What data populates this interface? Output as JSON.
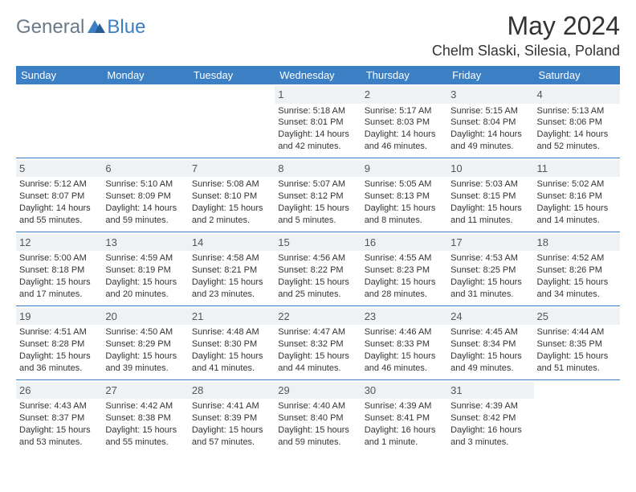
{
  "logo": {
    "general": "General",
    "blue": "Blue"
  },
  "title": "May 2024",
  "location": "Chelm Slaski, Silesia, Poland",
  "header_bg": "#3b7fc4",
  "daynum_bg": "#eef2f5",
  "days": [
    "Sunday",
    "Monday",
    "Tuesday",
    "Wednesday",
    "Thursday",
    "Friday",
    "Saturday"
  ],
  "weeks": [
    [
      null,
      null,
      null,
      {
        "n": "1",
        "sr": "Sunrise: 5:18 AM",
        "ss": "Sunset: 8:01 PM",
        "d1": "Daylight: 14 hours",
        "d2": "and 42 minutes."
      },
      {
        "n": "2",
        "sr": "Sunrise: 5:17 AM",
        "ss": "Sunset: 8:03 PM",
        "d1": "Daylight: 14 hours",
        "d2": "and 46 minutes."
      },
      {
        "n": "3",
        "sr": "Sunrise: 5:15 AM",
        "ss": "Sunset: 8:04 PM",
        "d1": "Daylight: 14 hours",
        "d2": "and 49 minutes."
      },
      {
        "n": "4",
        "sr": "Sunrise: 5:13 AM",
        "ss": "Sunset: 8:06 PM",
        "d1": "Daylight: 14 hours",
        "d2": "and 52 minutes."
      }
    ],
    [
      {
        "n": "5",
        "sr": "Sunrise: 5:12 AM",
        "ss": "Sunset: 8:07 PM",
        "d1": "Daylight: 14 hours",
        "d2": "and 55 minutes."
      },
      {
        "n": "6",
        "sr": "Sunrise: 5:10 AM",
        "ss": "Sunset: 8:09 PM",
        "d1": "Daylight: 14 hours",
        "d2": "and 59 minutes."
      },
      {
        "n": "7",
        "sr": "Sunrise: 5:08 AM",
        "ss": "Sunset: 8:10 PM",
        "d1": "Daylight: 15 hours",
        "d2": "and 2 minutes."
      },
      {
        "n": "8",
        "sr": "Sunrise: 5:07 AM",
        "ss": "Sunset: 8:12 PM",
        "d1": "Daylight: 15 hours",
        "d2": "and 5 minutes."
      },
      {
        "n": "9",
        "sr": "Sunrise: 5:05 AM",
        "ss": "Sunset: 8:13 PM",
        "d1": "Daylight: 15 hours",
        "d2": "and 8 minutes."
      },
      {
        "n": "10",
        "sr": "Sunrise: 5:03 AM",
        "ss": "Sunset: 8:15 PM",
        "d1": "Daylight: 15 hours",
        "d2": "and 11 minutes."
      },
      {
        "n": "11",
        "sr": "Sunrise: 5:02 AM",
        "ss": "Sunset: 8:16 PM",
        "d1": "Daylight: 15 hours",
        "d2": "and 14 minutes."
      }
    ],
    [
      {
        "n": "12",
        "sr": "Sunrise: 5:00 AM",
        "ss": "Sunset: 8:18 PM",
        "d1": "Daylight: 15 hours",
        "d2": "and 17 minutes."
      },
      {
        "n": "13",
        "sr": "Sunrise: 4:59 AM",
        "ss": "Sunset: 8:19 PM",
        "d1": "Daylight: 15 hours",
        "d2": "and 20 minutes."
      },
      {
        "n": "14",
        "sr": "Sunrise: 4:58 AM",
        "ss": "Sunset: 8:21 PM",
        "d1": "Daylight: 15 hours",
        "d2": "and 23 minutes."
      },
      {
        "n": "15",
        "sr": "Sunrise: 4:56 AM",
        "ss": "Sunset: 8:22 PM",
        "d1": "Daylight: 15 hours",
        "d2": "and 25 minutes."
      },
      {
        "n": "16",
        "sr": "Sunrise: 4:55 AM",
        "ss": "Sunset: 8:23 PM",
        "d1": "Daylight: 15 hours",
        "d2": "and 28 minutes."
      },
      {
        "n": "17",
        "sr": "Sunrise: 4:53 AM",
        "ss": "Sunset: 8:25 PM",
        "d1": "Daylight: 15 hours",
        "d2": "and 31 minutes."
      },
      {
        "n": "18",
        "sr": "Sunrise: 4:52 AM",
        "ss": "Sunset: 8:26 PM",
        "d1": "Daylight: 15 hours",
        "d2": "and 34 minutes."
      }
    ],
    [
      {
        "n": "19",
        "sr": "Sunrise: 4:51 AM",
        "ss": "Sunset: 8:28 PM",
        "d1": "Daylight: 15 hours",
        "d2": "and 36 minutes."
      },
      {
        "n": "20",
        "sr": "Sunrise: 4:50 AM",
        "ss": "Sunset: 8:29 PM",
        "d1": "Daylight: 15 hours",
        "d2": "and 39 minutes."
      },
      {
        "n": "21",
        "sr": "Sunrise: 4:48 AM",
        "ss": "Sunset: 8:30 PM",
        "d1": "Daylight: 15 hours",
        "d2": "and 41 minutes."
      },
      {
        "n": "22",
        "sr": "Sunrise: 4:47 AM",
        "ss": "Sunset: 8:32 PM",
        "d1": "Daylight: 15 hours",
        "d2": "and 44 minutes."
      },
      {
        "n": "23",
        "sr": "Sunrise: 4:46 AM",
        "ss": "Sunset: 8:33 PM",
        "d1": "Daylight: 15 hours",
        "d2": "and 46 minutes."
      },
      {
        "n": "24",
        "sr": "Sunrise: 4:45 AM",
        "ss": "Sunset: 8:34 PM",
        "d1": "Daylight: 15 hours",
        "d2": "and 49 minutes."
      },
      {
        "n": "25",
        "sr": "Sunrise: 4:44 AM",
        "ss": "Sunset: 8:35 PM",
        "d1": "Daylight: 15 hours",
        "d2": "and 51 minutes."
      }
    ],
    [
      {
        "n": "26",
        "sr": "Sunrise: 4:43 AM",
        "ss": "Sunset: 8:37 PM",
        "d1": "Daylight: 15 hours",
        "d2": "and 53 minutes."
      },
      {
        "n": "27",
        "sr": "Sunrise: 4:42 AM",
        "ss": "Sunset: 8:38 PM",
        "d1": "Daylight: 15 hours",
        "d2": "and 55 minutes."
      },
      {
        "n": "28",
        "sr": "Sunrise: 4:41 AM",
        "ss": "Sunset: 8:39 PM",
        "d1": "Daylight: 15 hours",
        "d2": "and 57 minutes."
      },
      {
        "n": "29",
        "sr": "Sunrise: 4:40 AM",
        "ss": "Sunset: 8:40 PM",
        "d1": "Daylight: 15 hours",
        "d2": "and 59 minutes."
      },
      {
        "n": "30",
        "sr": "Sunrise: 4:39 AM",
        "ss": "Sunset: 8:41 PM",
        "d1": "Daylight: 16 hours",
        "d2": "and 1 minute."
      },
      {
        "n": "31",
        "sr": "Sunrise: 4:39 AM",
        "ss": "Sunset: 8:42 PM",
        "d1": "Daylight: 16 hours",
        "d2": "and 3 minutes."
      },
      null
    ]
  ]
}
